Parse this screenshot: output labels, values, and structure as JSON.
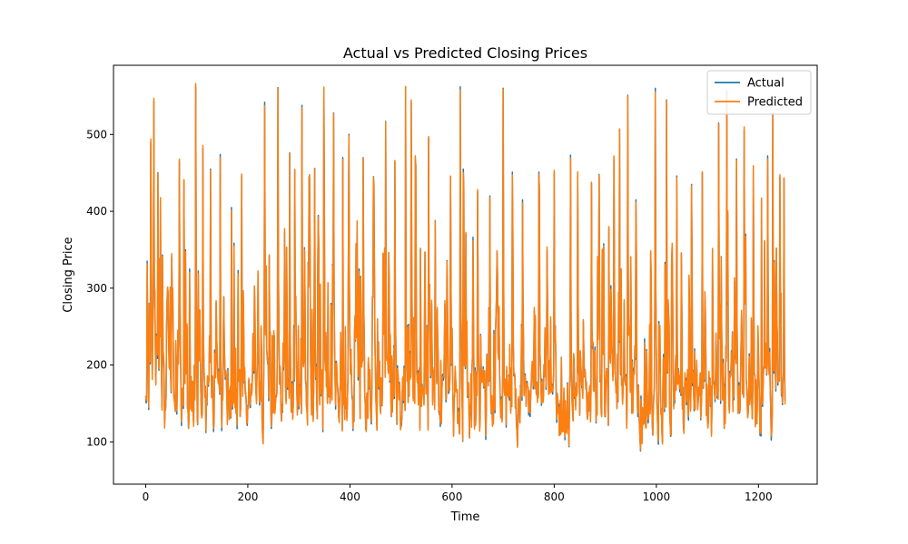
{
  "chart_data": {
    "type": "line",
    "title": "Actual vs Predicted Closing Prices",
    "xlabel": "Time",
    "ylabel": "Closing Price",
    "xlim": [
      -63,
      1315
    ],
    "ylim": [
      45,
      590
    ],
    "x_ticks": [
      0,
      200,
      400,
      600,
      800,
      1000,
      1200
    ],
    "y_ticks": [
      100,
      200,
      300,
      400,
      500
    ],
    "grid": false,
    "legend_position": "top-right",
    "x_range": [
      0,
      1252
    ],
    "series": [
      {
        "name": "Actual",
        "color": "#1f77b4"
      },
      {
        "name": "Predicted",
        "color": "#ff7f0e"
      }
    ],
    "data_summary": {
      "n_points": 1253,
      "min": 70,
      "max": 563
    },
    "peaks": [
      {
        "x": 3,
        "y": 335
      },
      {
        "x": 10,
        "y": 490
      },
      {
        "x": 16,
        "y": 543
      },
      {
        "x": 24,
        "y": 450
      },
      {
        "x": 29,
        "y": 415
      },
      {
        "x": 48,
        "y": 298
      },
      {
        "x": 66,
        "y": 465
      },
      {
        "x": 75,
        "y": 440
      },
      {
        "x": 98,
        "y": 562
      },
      {
        "x": 112,
        "y": 482
      },
      {
        "x": 127,
        "y": 455
      },
      {
        "x": 146,
        "y": 474
      },
      {
        "x": 168,
        "y": 405
      },
      {
        "x": 181,
        "y": 323
      },
      {
        "x": 188,
        "y": 446
      },
      {
        "x": 233,
        "y": 542
      },
      {
        "x": 242,
        "y": 342
      },
      {
        "x": 259,
        "y": 561
      },
      {
        "x": 282,
        "y": 476
      },
      {
        "x": 292,
        "y": 453
      },
      {
        "x": 306,
        "y": 538
      },
      {
        "x": 320,
        "y": 445
      },
      {
        "x": 331,
        "y": 456
      },
      {
        "x": 349,
        "y": 560
      },
      {
        "x": 368,
        "y": 528
      },
      {
        "x": 386,
        "y": 470
      },
      {
        "x": 398,
        "y": 500
      },
      {
        "x": 426,
        "y": 470
      },
      {
        "x": 446,
        "y": 445
      },
      {
        "x": 470,
        "y": 517
      },
      {
        "x": 488,
        "y": 465
      },
      {
        "x": 509,
        "y": 561
      },
      {
        "x": 520,
        "y": 542
      },
      {
        "x": 528,
        "y": 469
      },
      {
        "x": 538,
        "y": 350
      },
      {
        "x": 554,
        "y": 495
      },
      {
        "x": 567,
        "y": 388
      },
      {
        "x": 597,
        "y": 445
      },
      {
        "x": 616,
        "y": 562
      },
      {
        "x": 622,
        "y": 455
      },
      {
        "x": 650,
        "y": 425
      },
      {
        "x": 674,
        "y": 420
      },
      {
        "x": 700,
        "y": 560
      },
      {
        "x": 718,
        "y": 451
      },
      {
        "x": 738,
        "y": 415
      },
      {
        "x": 770,
        "y": 451
      },
      {
        "x": 800,
        "y": 450
      },
      {
        "x": 832,
        "y": 473
      },
      {
        "x": 846,
        "y": 448
      },
      {
        "x": 873,
        "y": 436
      },
      {
        "x": 888,
        "y": 448
      },
      {
        "x": 907,
        "y": 378
      },
      {
        "x": 917,
        "y": 468
      },
      {
        "x": 928,
        "y": 507
      },
      {
        "x": 944,
        "y": 551
      },
      {
        "x": 960,
        "y": 415
      },
      {
        "x": 998,
        "y": 560
      },
      {
        "x": 1020,
        "y": 545
      },
      {
        "x": 1040,
        "y": 446
      },
      {
        "x": 1069,
        "y": 435
      },
      {
        "x": 1090,
        "y": 450
      },
      {
        "x": 1110,
        "y": 350
      },
      {
        "x": 1122,
        "y": 515
      },
      {
        "x": 1138,
        "y": 555
      },
      {
        "x": 1157,
        "y": 468
      },
      {
        "x": 1172,
        "y": 505
      },
      {
        "x": 1190,
        "y": 455
      },
      {
        "x": 1206,
        "y": 415
      },
      {
        "x": 1218,
        "y": 472
      },
      {
        "x": 1228,
        "y": 528
      },
      {
        "x": 1242,
        "y": 445
      },
      {
        "x": 1250,
        "y": 443
      }
    ]
  }
}
